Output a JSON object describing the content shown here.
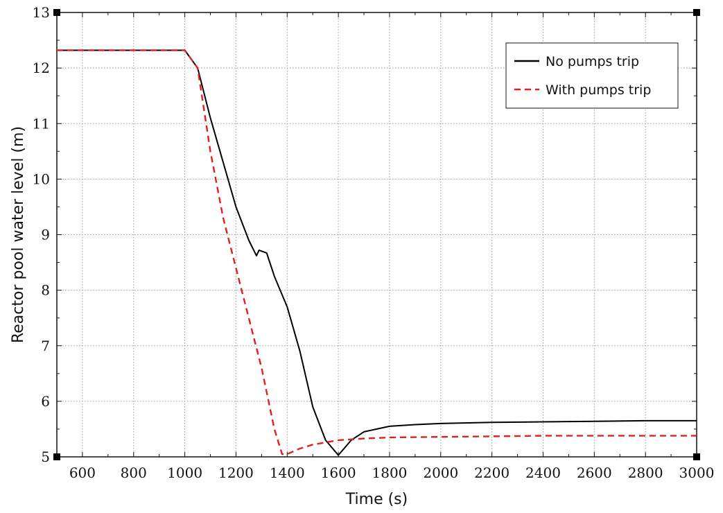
{
  "chart_data": {
    "type": "line",
    "xlabel": "Time (s)",
    "ylabel": "Reactor pool water level (m)",
    "xlim": [
      500,
      3000
    ],
    "ylim": [
      5,
      13
    ],
    "xticks": [
      600,
      800,
      1000,
      1200,
      1400,
      1600,
      1800,
      2000,
      2200,
      2400,
      2600,
      2800,
      3000
    ],
    "yticks": [
      5,
      6,
      7,
      8,
      9,
      10,
      11,
      12,
      13
    ],
    "grid": true,
    "legend_position": "top-right",
    "series": [
      {
        "name": "No pumps trip",
        "color": "#000000",
        "dash": "solid",
        "x": [
          500,
          1000,
          1050,
          1100,
          1150,
          1200,
          1250,
          1280,
          1290,
          1320,
          1350,
          1400,
          1450,
          1500,
          1550,
          1600,
          1650,
          1700,
          1800,
          1900,
          2000,
          2200,
          2400,
          2600,
          2800,
          3000
        ],
        "y": [
          12.32,
          12.32,
          12.0,
          11.1,
          10.3,
          9.5,
          8.9,
          8.62,
          8.72,
          8.67,
          8.25,
          7.7,
          6.9,
          5.9,
          5.3,
          5.03,
          5.3,
          5.45,
          5.55,
          5.58,
          5.6,
          5.62,
          5.63,
          5.64,
          5.65,
          5.65
        ]
      },
      {
        "name": "With pumps trip",
        "color": "#e02020",
        "dash": "dashed",
        "x": [
          500,
          1000,
          1050,
          1100,
          1150,
          1200,
          1250,
          1300,
          1350,
          1380,
          1400,
          1450,
          1500,
          1600,
          1700,
          1800,
          2000,
          2200,
          2400,
          2600,
          2800,
          3000
        ],
        "y": [
          12.32,
          12.32,
          12.0,
          10.5,
          9.3,
          8.4,
          7.5,
          6.6,
          5.5,
          5.05,
          5.05,
          5.15,
          5.22,
          5.3,
          5.33,
          5.35,
          5.36,
          5.37,
          5.38,
          5.38,
          5.38,
          5.38
        ]
      }
    ]
  }
}
